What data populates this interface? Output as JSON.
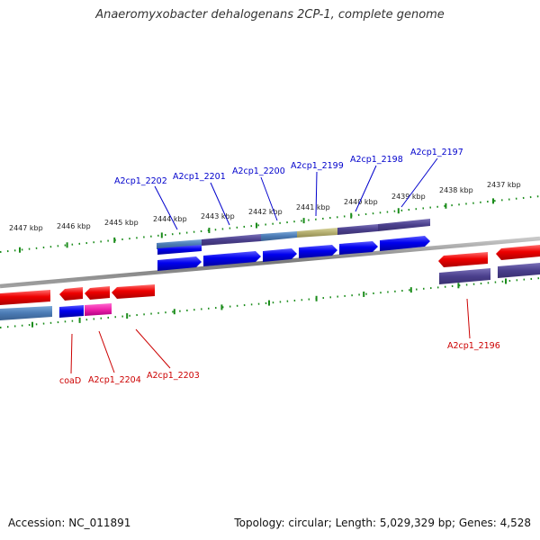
{
  "title": "Anaeromyxobacter dehalogenans 2CP-1, complete genome",
  "accession": "Accession: NC_011891",
  "topology": "Topology: circular; Length: 5,029,329 bp; Genes: 4,528",
  "colors": {
    "forward_label": "#0000cc",
    "reverse_label": "#cc0000",
    "tick": "#1a8c1a",
    "backbone": "#8c8c8c"
  },
  "scale_labels": [
    "2447 kbp",
    "2446 kbp",
    "2445 kbp",
    "2444 kbp",
    "2443 kbp",
    "2442 kbp",
    "2441 kbp",
    "2440 kbp",
    "2439 kbp",
    "2438 kbp",
    "2437 kbp"
  ],
  "forward_genes": [
    "A2cp1_2202",
    "A2cp1_2201",
    "A2cp1_2200",
    "A2cp1_2199",
    "A2cp1_2198",
    "A2cp1_2197"
  ],
  "reverse_genes": [
    "coaD",
    "A2cp1_2204",
    "A2cp1_2203",
    "A2cp1_2196"
  ]
}
